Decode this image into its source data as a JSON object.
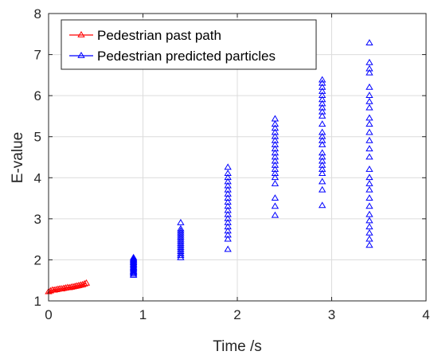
{
  "chart_data": {
    "type": "scatter",
    "xlabel": "Time /s",
    "ylabel": "E-value",
    "xlim": [
      0,
      4
    ],
    "ylim": [
      1,
      8
    ],
    "xticks": [
      0,
      1,
      2,
      3,
      4
    ],
    "yticks": [
      1,
      2,
      3,
      4,
      5,
      6,
      7,
      8
    ],
    "grid": true,
    "legend_position": "top-left",
    "colors": {
      "past_path": "#ff0000",
      "predicted_particles": "#0000ff",
      "grid": "#dcdcdc",
      "axes": "#262626"
    },
    "series": [
      {
        "name": "Pedestrian past path",
        "marker": "triangle",
        "line": true,
        "x": [
          0.0,
          0.02,
          0.04,
          0.06,
          0.08,
          0.1,
          0.12,
          0.14,
          0.16,
          0.18,
          0.2,
          0.22,
          0.24,
          0.26,
          0.28,
          0.3,
          0.32,
          0.34,
          0.36,
          0.38,
          0.4
        ],
        "y": [
          1.22,
          1.24,
          1.26,
          1.26,
          1.27,
          1.28,
          1.29,
          1.29,
          1.3,
          1.31,
          1.32,
          1.32,
          1.33,
          1.34,
          1.35,
          1.36,
          1.37,
          1.38,
          1.39,
          1.41,
          1.43
        ]
      },
      {
        "name": "Pedestrian predicted particles",
        "marker": "triangle",
        "line": false,
        "groups": [
          {
            "x": 0.9,
            "y": [
              1.62,
              1.65,
              1.68,
              1.7,
              1.72,
              1.75,
              1.78,
              1.8,
              1.82,
              1.85,
              1.88,
              1.9,
              1.93,
              1.95,
              1.98,
              2.0,
              2.02,
              2.05
            ]
          },
          {
            "x": 1.4,
            "y": [
              2.05,
              2.1,
              2.15,
              2.2,
              2.25,
              2.3,
              2.35,
              2.4,
              2.45,
              2.5,
              2.55,
              2.6,
              2.65,
              2.7,
              2.75,
              2.9
            ]
          },
          {
            "x": 1.9,
            "y": [
              2.25,
              2.5,
              2.6,
              2.7,
              2.8,
              2.9,
              3.0,
              3.1,
              3.2,
              3.3,
              3.4,
              3.5,
              3.6,
              3.7,
              3.8,
              3.9,
              4.0,
              4.1,
              4.25
            ]
          },
          {
            "x": 2.4,
            "y": [
              3.08,
              3.3,
              3.5,
              3.85,
              4.0,
              4.1,
              4.2,
              4.3,
              4.4,
              4.5,
              4.6,
              4.7,
              4.8,
              4.9,
              5.0,
              5.1,
              5.2,
              5.3,
              5.43
            ]
          },
          {
            "x": 2.9,
            "y": [
              3.32,
              3.7,
              3.9,
              4.1,
              4.2,
              4.3,
              4.4,
              4.5,
              4.6,
              4.8,
              4.9,
              5.0,
              5.1,
              5.3,
              5.5,
              5.6,
              5.7,
              5.8,
              5.9,
              6.0,
              6.1,
              6.2,
              6.3,
              6.38
            ]
          },
          {
            "x": 3.4,
            "y": [
              2.35,
              2.5,
              2.65,
              2.8,
              2.95,
              3.1,
              3.3,
              3.5,
              3.7,
              3.85,
              4.0,
              4.2,
              4.5,
              4.7,
              4.9,
              5.1,
              5.3,
              5.45,
              5.7,
              5.85,
              6.0,
              6.2,
              6.55,
              6.65,
              6.8,
              7.28
            ]
          }
        ]
      }
    ]
  }
}
